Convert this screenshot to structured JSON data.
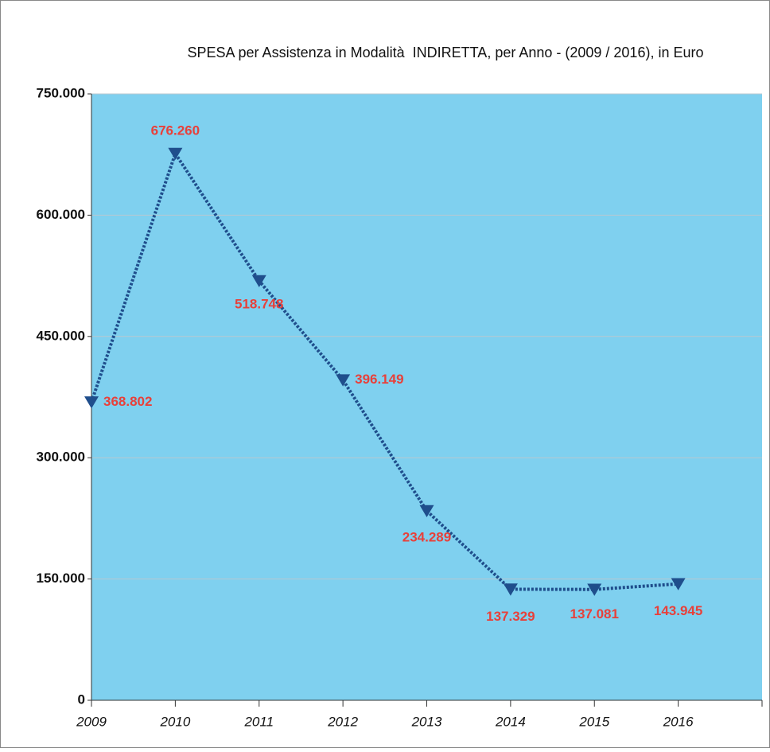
{
  "chart_data": {
    "type": "line",
    "title": "SPESA per Assistenza in Modalità  INDIRETTA, per Anno - (2009 / 2016), in Euro",
    "categories": [
      "2009",
      "2010",
      "2011",
      "2012",
      "2013",
      "2014",
      "2015",
      "2016"
    ],
    "series": [
      {
        "name": "SPESA",
        "color": "#1f4e8c",
        "values": [
          368802,
          676260,
          518748,
          396149,
          234289,
          137329,
          137081,
          143945
        ],
        "value_labels": [
          "368.802",
          "676.260",
          "518.748",
          "396.149",
          "234.289",
          "137.329",
          "137.081",
          "143.945"
        ]
      }
    ],
    "ylim": [
      0,
      750000
    ],
    "yticks": [
      0,
      {
        "value": 150000,
        "label": "150.000"
      },
      {
        "value": 300000,
        "label": "300.000"
      },
      {
        "value": 450000,
        "label": "450.000"
      },
      {
        "value": 600000,
        "label": "600.000"
      },
      {
        "value": 750000,
        "label": "750.000"
      }
    ],
    "grid": true,
    "background": "#7fd0ef",
    "label_color": "#e8403a"
  }
}
